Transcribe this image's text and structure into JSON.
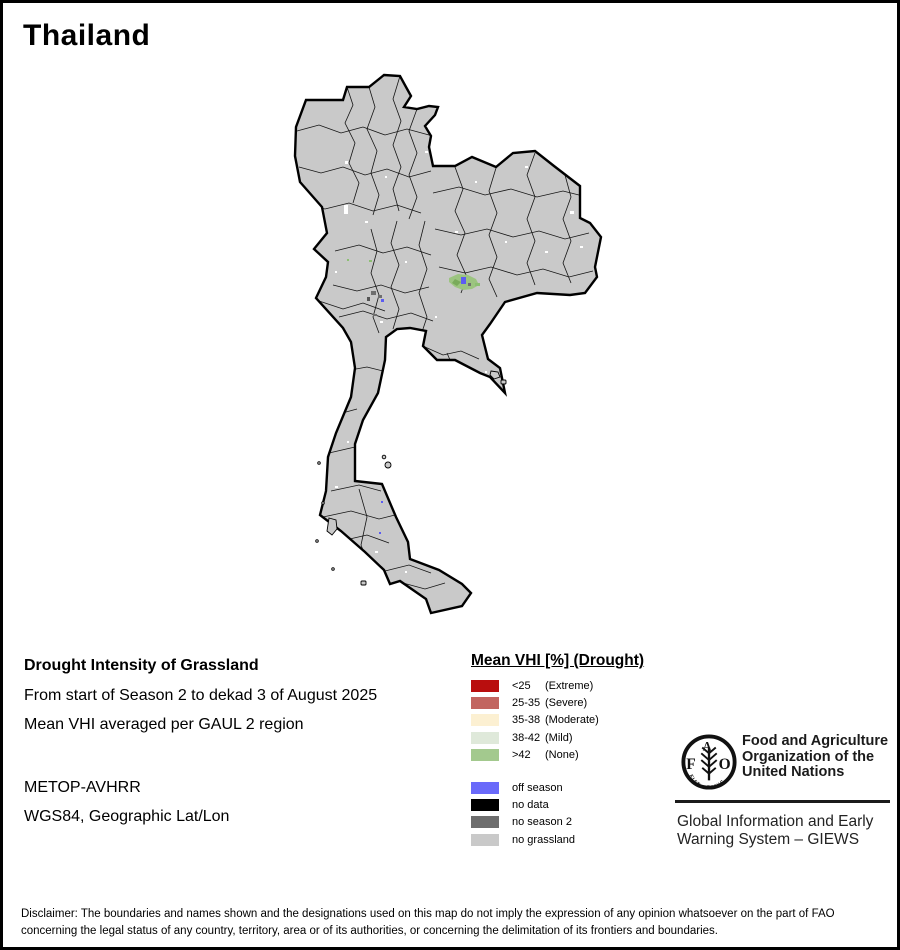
{
  "title": "Thailand",
  "info_block": {
    "heading": "Drought Intensity of Grassland",
    "period_line": "From start of Season 2 to dekad 3 of August 2025",
    "method_line": "Mean VHI averaged per GAUL 2 region",
    "sensor_line": "METOP-AVHRR",
    "projection_line": "WGS84, Geographic Lat/Lon"
  },
  "legend": {
    "title": "Mean VHI [%] (Drought)",
    "classes": [
      {
        "range": "<25",
        "label": "(Extreme)",
        "color": "#B90E0E"
      },
      {
        "range": "25-35",
        "label": "(Severe)",
        "color": "#C26560"
      },
      {
        "range": "35-38",
        "label": "(Moderate)",
        "color": "#FCF0D2"
      },
      {
        "range": "38-42",
        "label": "(Mild)",
        "color": "#DFE9DA"
      },
      {
        "range": ">42",
        "label": "(None)",
        "color": "#A3C98E"
      }
    ],
    "extra_classes": [
      {
        "label": "off season",
        "color": "#6A6AFA"
      },
      {
        "label": "no data",
        "color": "#000000"
      },
      {
        "label": "no season 2",
        "color": "#6E6E6E"
      },
      {
        "label": "no grassland",
        "color": "#C9C9C9"
      }
    ]
  },
  "map": {
    "country": "Thailand",
    "base_fill": "#C9C9C9",
    "boundary_color": "#000000",
    "highlight_patches": [
      {
        "name": "mild-vhi-patch-central",
        "color": "#9CC480"
      },
      {
        "name": "off-season-dots",
        "color": "#5C5CF2"
      },
      {
        "name": "no-season-2-specks",
        "color": "#6E6E6E"
      }
    ]
  },
  "footer": {
    "fao_name_lines": [
      "Food and Agriculture",
      "Organization of the",
      "United Nations"
    ],
    "fao_logo": {
      "letter_f": "F",
      "letter_a": "A",
      "letter_o": "O",
      "motto": "FIAT · PANIS"
    },
    "giews_lines": [
      "Global Information and Early",
      "Warning System – GIEWS"
    ]
  },
  "disclaimer_lines": [
    "Disclaimer: The boundaries and names shown and the designations used on this map do not imply the expression of any opinion whatsoever on the part of FAO",
    "concerning the legal status of any country, territory, area or of its authorities, or concerning the delimitation of its frontiers and boundaries."
  ]
}
